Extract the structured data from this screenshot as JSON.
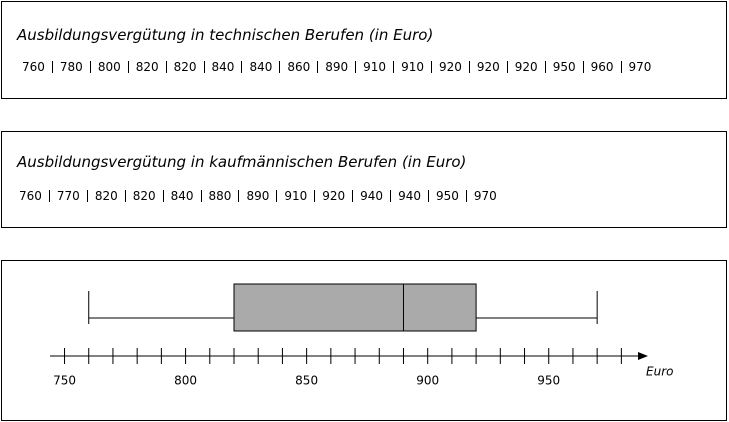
{
  "panels": [
    {
      "title": "Ausbildungsvergütung in technischen Berufen (in Euro)",
      "values": [
        760,
        780,
        800,
        820,
        820,
        840,
        840,
        860,
        890,
        910,
        910,
        920,
        920,
        920,
        950,
        960,
        970
      ]
    },
    {
      "title": "Ausbildungsvergütung in kaufmännischen Berufen (in Euro)",
      "values": [
        760,
        770,
        820,
        820,
        840,
        880,
        890,
        910,
        920,
        940,
        940,
        950,
        970
      ]
    }
  ],
  "chart_data": {
    "type": "box",
    "min": 760,
    "q1": 820,
    "median": 890,
    "q3": 920,
    "max": 970,
    "color": "#aaaaaa",
    "xlim": [
      744,
      991
    ],
    "xticks": [
      750,
      800,
      850,
      900,
      950
    ],
    "minor_xticks": [
      760,
      770,
      780,
      790,
      810,
      820,
      830,
      840,
      860,
      870,
      880,
      890,
      910,
      920,
      930,
      940,
      960,
      970,
      980
    ],
    "xlabel": "Euro"
  }
}
